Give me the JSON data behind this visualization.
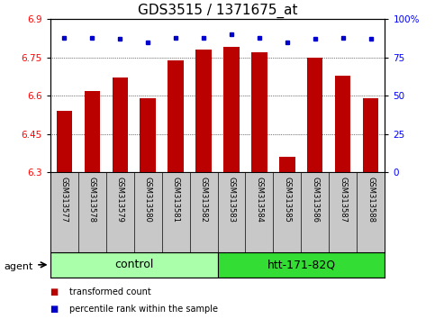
{
  "title": "GDS3515 / 1371675_at",
  "samples": [
    "GSM313577",
    "GSM313578",
    "GSM313579",
    "GSM313580",
    "GSM313581",
    "GSM313582",
    "GSM313583",
    "GSM313584",
    "GSM313585",
    "GSM313586",
    "GSM313587",
    "GSM313588"
  ],
  "bar_values": [
    6.54,
    6.62,
    6.67,
    6.59,
    6.74,
    6.78,
    6.79,
    6.77,
    6.36,
    6.75,
    6.68,
    6.59
  ],
  "percentile_values": [
    88,
    88,
    87,
    85,
    88,
    88,
    90,
    88,
    85,
    87,
    88,
    87
  ],
  "ylim_left": [
    6.3,
    6.9
  ],
  "ylim_right": [
    0,
    100
  ],
  "yticks_left": [
    6.3,
    6.45,
    6.6,
    6.75,
    6.9
  ],
  "yticks_right": [
    0,
    25,
    50,
    75,
    100
  ],
  "ytick_labels_left": [
    "6.3",
    "6.45",
    "6.6",
    "6.75",
    "6.9"
  ],
  "ytick_labels_right": [
    "0",
    "25",
    "50",
    "75",
    "100%"
  ],
  "groups": [
    {
      "label": "control",
      "indices": [
        0,
        1,
        2,
        3,
        4,
        5
      ],
      "color": "#AAFFAA"
    },
    {
      "label": "htt-171-82Q",
      "indices": [
        6,
        7,
        8,
        9,
        10,
        11
      ],
      "color": "#33DD33"
    }
  ],
  "agent_label": "agent",
  "bar_color": "#BB0000",
  "percentile_color": "#0000CC",
  "bar_width": 0.55,
  "bg_color": "#C8C8C8",
  "legend_bar_label": "transformed count",
  "legend_pct_label": "percentile rank within the sample",
  "title_fontsize": 11,
  "tick_fontsize": 7.5,
  "label_fontsize": 6,
  "group_label_fontsize": 9
}
